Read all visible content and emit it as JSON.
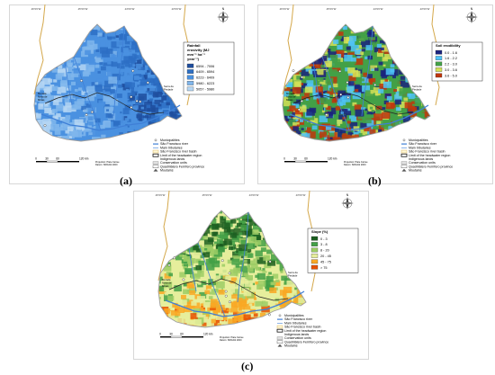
{
  "panels": [
    {
      "id": "a",
      "label": "(a)",
      "legend_title_lines": [
        "Rainfall",
        "erosivity (MJ",
        "mm⁻¹ ha⁻¹",
        "year⁻¹)"
      ],
      "classes": [
        {
          "label": "6594 - 7006",
          "color": "#1f4e9e"
        },
        {
          "label": "6409 - 6594",
          "color": "#2d6fc4"
        },
        {
          "label": "6223 - 6409",
          "color": "#4a91e0"
        },
        {
          "label": "5980 - 6223",
          "color": "#7fb6ec"
        },
        {
          "label": "5057 - 5980",
          "color": "#b5d6f3"
        }
      ]
    },
    {
      "id": "b",
      "label": "(b)",
      "legend_title_lines": [
        "Soil erodibility"
      ],
      "classes": [
        {
          "label": "0.0 - 1.6",
          "color": "#1a237e"
        },
        {
          "label": "1.6 - 2.2",
          "color": "#4fc3f7"
        },
        {
          "label": "2.2 - 3.0",
          "color": "#43a047"
        },
        {
          "label": "3.0 - 3.6",
          "color": "#d4e157"
        },
        {
          "label": "3.6 - 5.0",
          "color": "#bf360c"
        }
      ]
    },
    {
      "id": "c",
      "label": "(c)",
      "legend_title_lines": [
        "Slope (%)"
      ],
      "classes": [
        {
          "label": "0 - 3",
          "color": "#1b5e20"
        },
        {
          "label": "3 - 8",
          "color": "#43a047"
        },
        {
          "label": "8 - 20",
          "color": "#9ccc65"
        },
        {
          "label": "20 - 45",
          "color": "#e6ee9c"
        },
        {
          "label": "45 - 75",
          "color": "#f9a825"
        },
        {
          "label": "> 75",
          "color": "#e65100"
        }
      ]
    }
  ],
  "common_legend": [
    "Municipalities",
    "São Francisco river",
    "Main tributaries",
    "São Francisco river basin",
    "Limit of the headwater region",
    "Indigenous lands",
    "Conservation units",
    "Quadrilátero Ferrífero province",
    "Moutains"
  ],
  "scale_bar": {
    "ticks": [
      "0",
      "30",
      "60",
      "120 km"
    ]
  },
  "projection_lines": [
    "Projection: Plate Carree",
    "Datum: SIRGAS 2000"
  ],
  "place_names": {
    "left": [
      "Morada",
      "Nova de",
      "Minas"
    ],
    "right": [
      "Serra da",
      "Piedade"
    ]
  },
  "top_coords": [
    "46°0'0\"W",
    "45°0'0\"W",
    "44°0'0\"W",
    "43°0'0\"W"
  ],
  "north_arrow_letter": "N",
  "colors": {
    "basin_edge": "#9e9e9e",
    "river": "#3f7fd6",
    "outer_river": "#d4a84b"
  }
}
